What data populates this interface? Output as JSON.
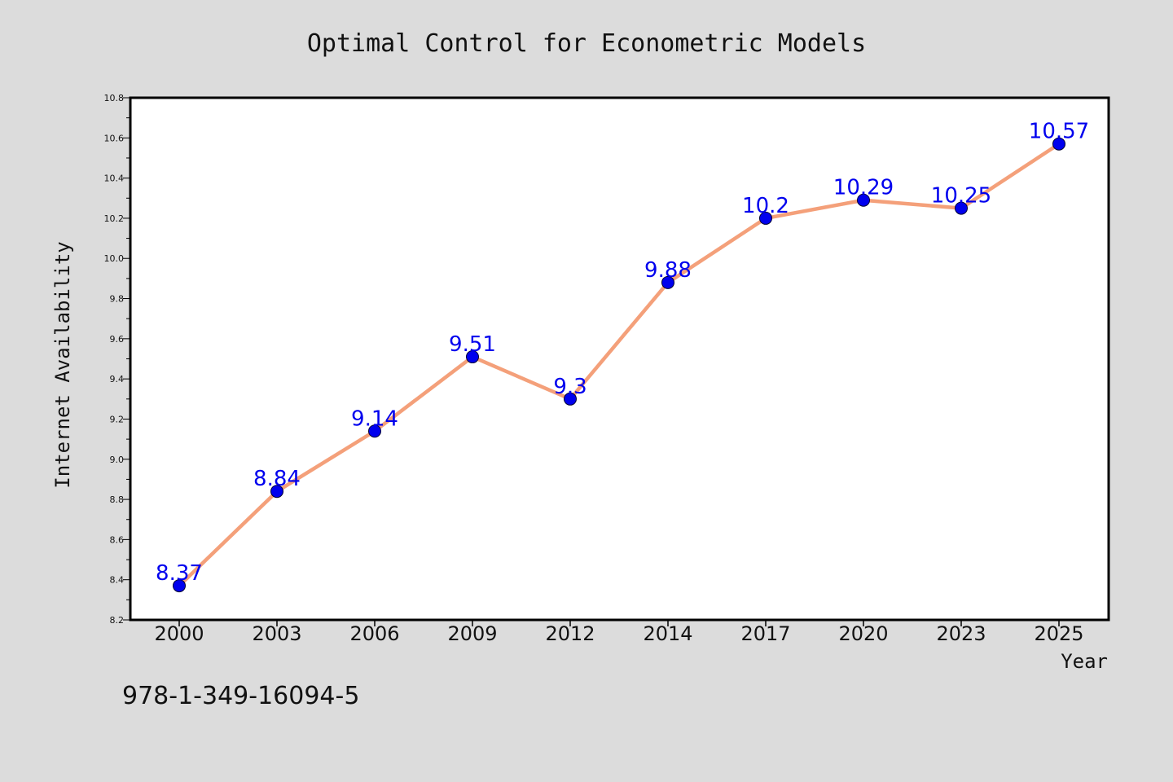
{
  "chart_data": {
    "type": "line",
    "title": "Optimal Control for Econometric Models",
    "xlabel": "Year",
    "ylabel": "Internet Availability",
    "categories": [
      "2000",
      "2003",
      "2006",
      "2009",
      "2012",
      "2014",
      "2017",
      "2020",
      "2023",
      "2025"
    ],
    "series": [
      {
        "values": [
          8.37,
          8.84,
          9.14,
          9.51,
          9.3,
          9.88,
          10.2,
          10.29,
          10.25,
          10.57
        ]
      }
    ],
    "data_labels": [
      "8.37",
      "8.84",
      "9.14",
      "9.51",
      "9.3",
      "9.88",
      "10.2",
      "10.29",
      "10.25",
      "10.57"
    ],
    "ylim": [
      8.2,
      10.8
    ],
    "yticks": [
      "8.2",
      "8.4",
      "8.6",
      "8.8",
      "9.0",
      "9.2",
      "9.4",
      "9.6",
      "9.8",
      "10.0",
      "10.2",
      "10.4",
      "10.6",
      "10.8"
    ],
    "grid": false,
    "legend": "none",
    "colors": {
      "line": "#f4a07a",
      "marker": "#0000ee",
      "data_label": "#0000ee",
      "background": "#dcdcdc",
      "plot_background": "#ffffff"
    }
  },
  "footer": {
    "isbn": "978-1-349-16094-5"
  }
}
